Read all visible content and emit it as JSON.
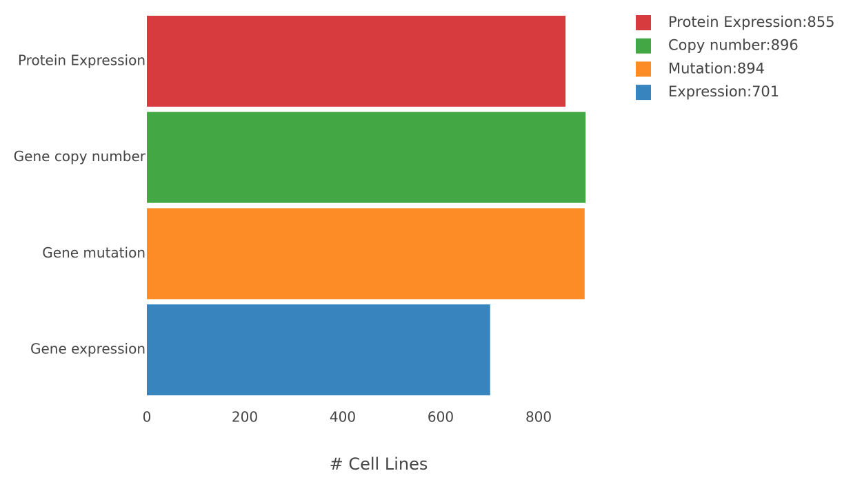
{
  "chart_data": {
    "type": "hbar",
    "categories": [
      "Protein Expression",
      "Gene copy number",
      "Gene mutation",
      "Gene expression"
    ],
    "values": [
      855,
      896,
      894,
      701
    ],
    "colors": [
      "#d83b3e",
      "#43a843",
      "#fd8c27",
      "#3884bf"
    ],
    "legend": [
      "Protein Expression:855",
      "Copy number:896",
      "Mutation:894",
      "Expression:701"
    ],
    "xlabel": "# Cell Lines",
    "xlim": [
      0,
      896
    ],
    "xticks": [
      0,
      200,
      400,
      600,
      800
    ],
    "grid": false
  }
}
